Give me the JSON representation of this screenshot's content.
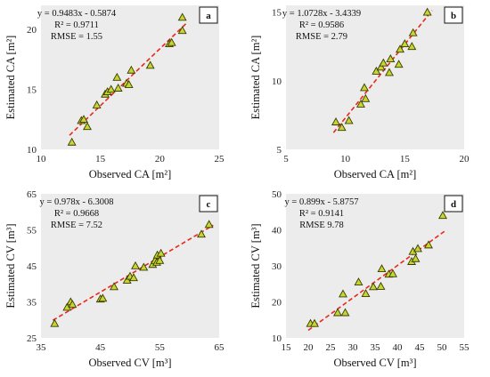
{
  "colors": {
    "plot_bg": "#ececec",
    "marker_fill": "#c5d632",
    "marker_edge": "#3a3a00",
    "trend_line": "#e8281e",
    "panel_label_bg": "#ffffff"
  },
  "chart_data": [
    {
      "type": "scatter",
      "panel_label": "a",
      "xlabel": "Observed CA [m²]",
      "ylabel": "Estimated CA [m²]",
      "xlim": [
        10,
        25
      ],
      "ylim": [
        10,
        22
      ],
      "xticks": [
        10,
        15,
        20,
        25
      ],
      "yticks": [
        10,
        15,
        20
      ],
      "grid": false,
      "equation": "y = 0.9483x - 0.5874",
      "r2": "R² = 0.9711",
      "rmse": "RMSE = 1.55",
      "trendline": {
        "slope": 0.9483,
        "intercept": -0.5874,
        "x_from": 12.4,
        "x_to": 22.3
      },
      "points": [
        [
          12.6,
          10.6
        ],
        [
          13.4,
          12.4
        ],
        [
          13.6,
          12.5
        ],
        [
          13.9,
          11.9
        ],
        [
          14.7,
          13.7
        ],
        [
          15.4,
          14.6
        ],
        [
          15.6,
          14.8
        ],
        [
          15.9,
          15.0
        ],
        [
          16.4,
          16.0
        ],
        [
          16.5,
          15.1
        ],
        [
          17.2,
          15.5
        ],
        [
          17.4,
          15.4
        ],
        [
          17.6,
          16.6
        ],
        [
          19.2,
          17.0
        ],
        [
          20.8,
          18.8
        ],
        [
          21.0,
          18.9
        ],
        [
          21.9,
          19.9
        ],
        [
          21.9,
          21.0
        ]
      ]
    },
    {
      "type": "scatter",
      "panel_label": "b",
      "xlabel": "Observed CA [m²]",
      "ylabel": "Estimated CA [m²]",
      "xlim": [
        5,
        20
      ],
      "ylim": [
        5,
        15.5
      ],
      "xticks": [
        5,
        10,
        15,
        20
      ],
      "yticks": [
        5,
        10,
        15
      ],
      "grid": false,
      "equation": "y = 1.0728x - 3.4339",
      "r2": "R² = 0.9586",
      "rmse": "RMSE = 2.79",
      "trendline": {
        "slope": 1.0728,
        "intercept": -3.4339,
        "x_from": 9.0,
        "x_to": 17.3
      },
      "points": [
        [
          9.2,
          7.0
        ],
        [
          9.7,
          6.6
        ],
        [
          10.3,
          7.1
        ],
        [
          11.3,
          8.3
        ],
        [
          11.6,
          9.5
        ],
        [
          11.7,
          8.7
        ],
        [
          12.6,
          10.7
        ],
        [
          13.0,
          11.0
        ],
        [
          13.2,
          11.3
        ],
        [
          13.7,
          10.6
        ],
        [
          13.8,
          11.6
        ],
        [
          14.5,
          11.2
        ],
        [
          14.6,
          12.3
        ],
        [
          15.0,
          12.7
        ],
        [
          15.6,
          12.5
        ],
        [
          15.7,
          13.5
        ],
        [
          16.9,
          15.0
        ]
      ]
    },
    {
      "type": "scatter",
      "panel_label": "c",
      "xlabel": "Observed CV [m³]",
      "ylabel": "Estimated CV [m³]",
      "xlim": [
        35,
        65
      ],
      "ylim": [
        25,
        65
      ],
      "xticks": [
        35,
        45,
        55,
        65
      ],
      "yticks": [
        25,
        35,
        45,
        55,
        65
      ],
      "grid": false,
      "equation": "y = 0.978x - 6.3008",
      "r2": "R² = 0.9668",
      "rmse": "RMSE = 7.52",
      "trendline": {
        "slope": 0.978,
        "intercept": -6.3008,
        "x_from": 37.0,
        "x_to": 64.0
      },
      "points": [
        [
          37.3,
          29.0
        ],
        [
          39.4,
          33.5
        ],
        [
          40.0,
          35.0
        ],
        [
          40.3,
          34.3
        ],
        [
          45.0,
          35.8
        ],
        [
          45.4,
          36.0
        ],
        [
          47.3,
          39.2
        ],
        [
          49.5,
          41.0
        ],
        [
          50.0,
          42.1
        ],
        [
          50.6,
          41.7
        ],
        [
          50.9,
          45.0
        ],
        [
          52.3,
          44.6
        ],
        [
          53.8,
          45.4
        ],
        [
          54.2,
          46.5
        ],
        [
          54.5,
          46.0
        ],
        [
          54.6,
          48.0
        ],
        [
          55.0,
          46.5
        ],
        [
          55.2,
          48.5
        ],
        [
          62.0,
          53.8
        ],
        [
          63.3,
          56.5
        ]
      ]
    },
    {
      "type": "scatter",
      "panel_label": "d",
      "xlabel": "Observed CV [m³]",
      "ylabel": "Estimated CV [m³]",
      "xlim": [
        15,
        55
      ],
      "ylim": [
        10,
        50
      ],
      "xticks": [
        15,
        20,
        25,
        30,
        35,
        40,
        45,
        50,
        55
      ],
      "yticks": [
        10,
        20,
        30,
        40,
        50
      ],
      "grid": false,
      "equation": "y = 0.899x - 5.8757",
      "r2": "R² = 0.9141",
      "rmse": "RMSE 9.78",
      "trendline": {
        "slope": 0.899,
        "intercept": -5.8757,
        "x_from": 20.0,
        "x_to": 51.0
      },
      "points": [
        [
          20.5,
          14.0
        ],
        [
          21.4,
          14.0
        ],
        [
          26.6,
          17.0
        ],
        [
          27.8,
          22.2
        ],
        [
          28.3,
          17.0
        ],
        [
          31.3,
          25.5
        ],
        [
          32.9,
          22.3
        ],
        [
          34.6,
          24.2
        ],
        [
          36.3,
          24.3
        ],
        [
          36.5,
          29.2
        ],
        [
          38.1,
          27.7
        ],
        [
          39.0,
          27.8
        ],
        [
          43.2,
          31.2
        ],
        [
          43.5,
          34.0
        ],
        [
          44.1,
          32.0
        ],
        [
          44.6,
          34.8
        ],
        [
          47.0,
          35.8
        ],
        [
          50.2,
          44.0
        ]
      ]
    }
  ]
}
